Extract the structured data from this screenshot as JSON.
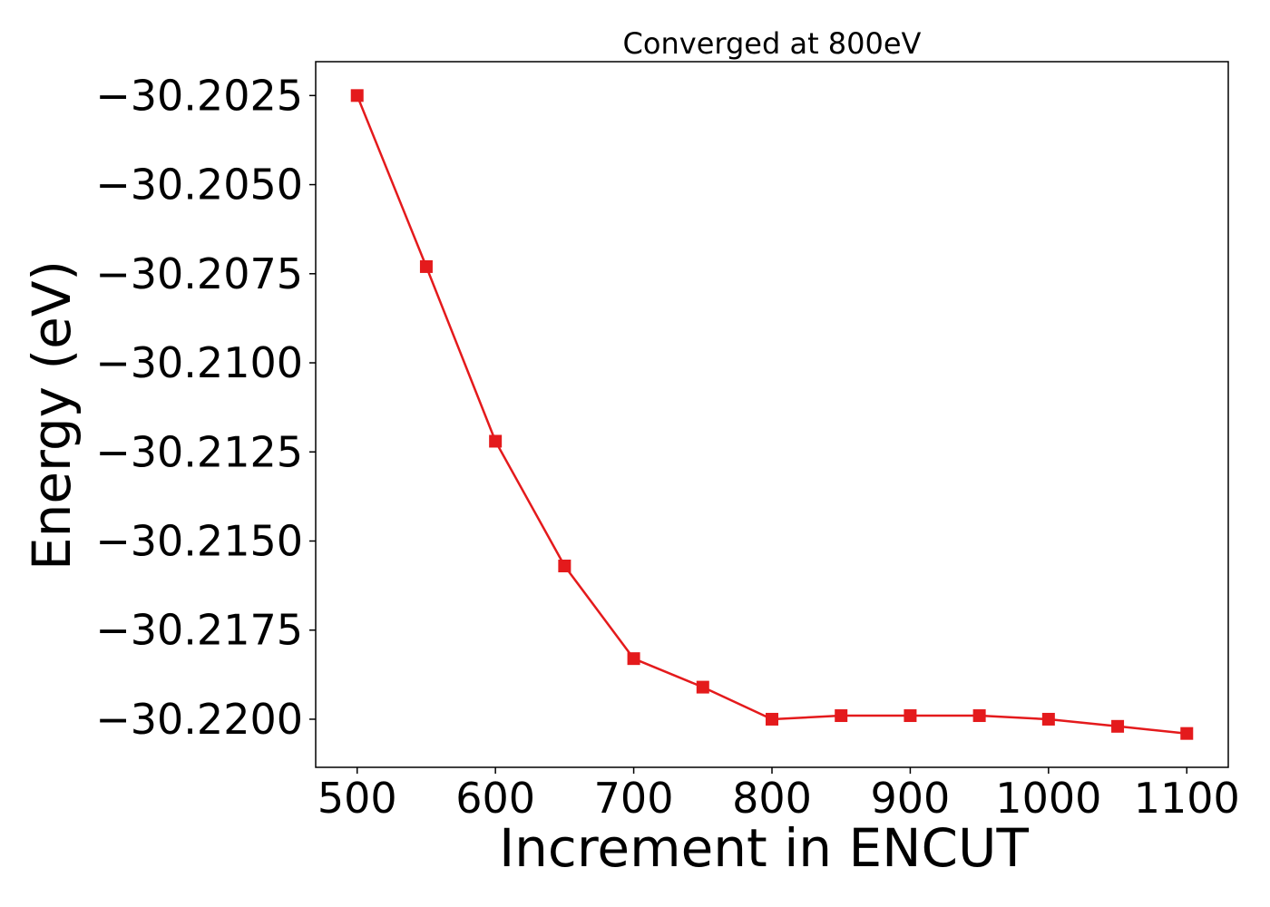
{
  "chart_data": {
    "type": "line",
    "title": "Converged at 800eV",
    "xlabel": "Increment in ENCUT",
    "ylabel": "Energy (eV)",
    "x": [
      500,
      550,
      600,
      650,
      700,
      750,
      800,
      850,
      900,
      950,
      1000,
      1050,
      1100
    ],
    "series": [
      {
        "values": [
          -30.2025,
          -30.2073,
          -30.2122,
          -30.2157,
          -30.2183,
          -30.2191,
          -30.22,
          -30.2199,
          -30.2199,
          -30.2199,
          -30.22,
          -30.2202,
          -30.2204
        ]
      }
    ],
    "xticks": [
      500,
      600,
      700,
      800,
      900,
      1000,
      1100
    ],
    "xtick_labels": [
      "500",
      "600",
      "700",
      "800",
      "900",
      "1000",
      "1100"
    ],
    "yticks": [
      -30.2025,
      -30.205,
      -30.2075,
      -30.21,
      -30.2125,
      -30.215,
      -30.2175,
      -30.22
    ],
    "ytick_labels": [
      "−30.2025",
      "−30.2050",
      "−30.2075",
      "−30.2100",
      "−30.2125",
      "−30.2150",
      "−30.2175",
      "−30.2200"
    ],
    "xlim": [
      470,
      1130
    ],
    "ylim": [
      -30.22135,
      -30.20155
    ],
    "grid": false,
    "legend": "none",
    "line_color": "#e41a1c",
    "marker": "square"
  }
}
